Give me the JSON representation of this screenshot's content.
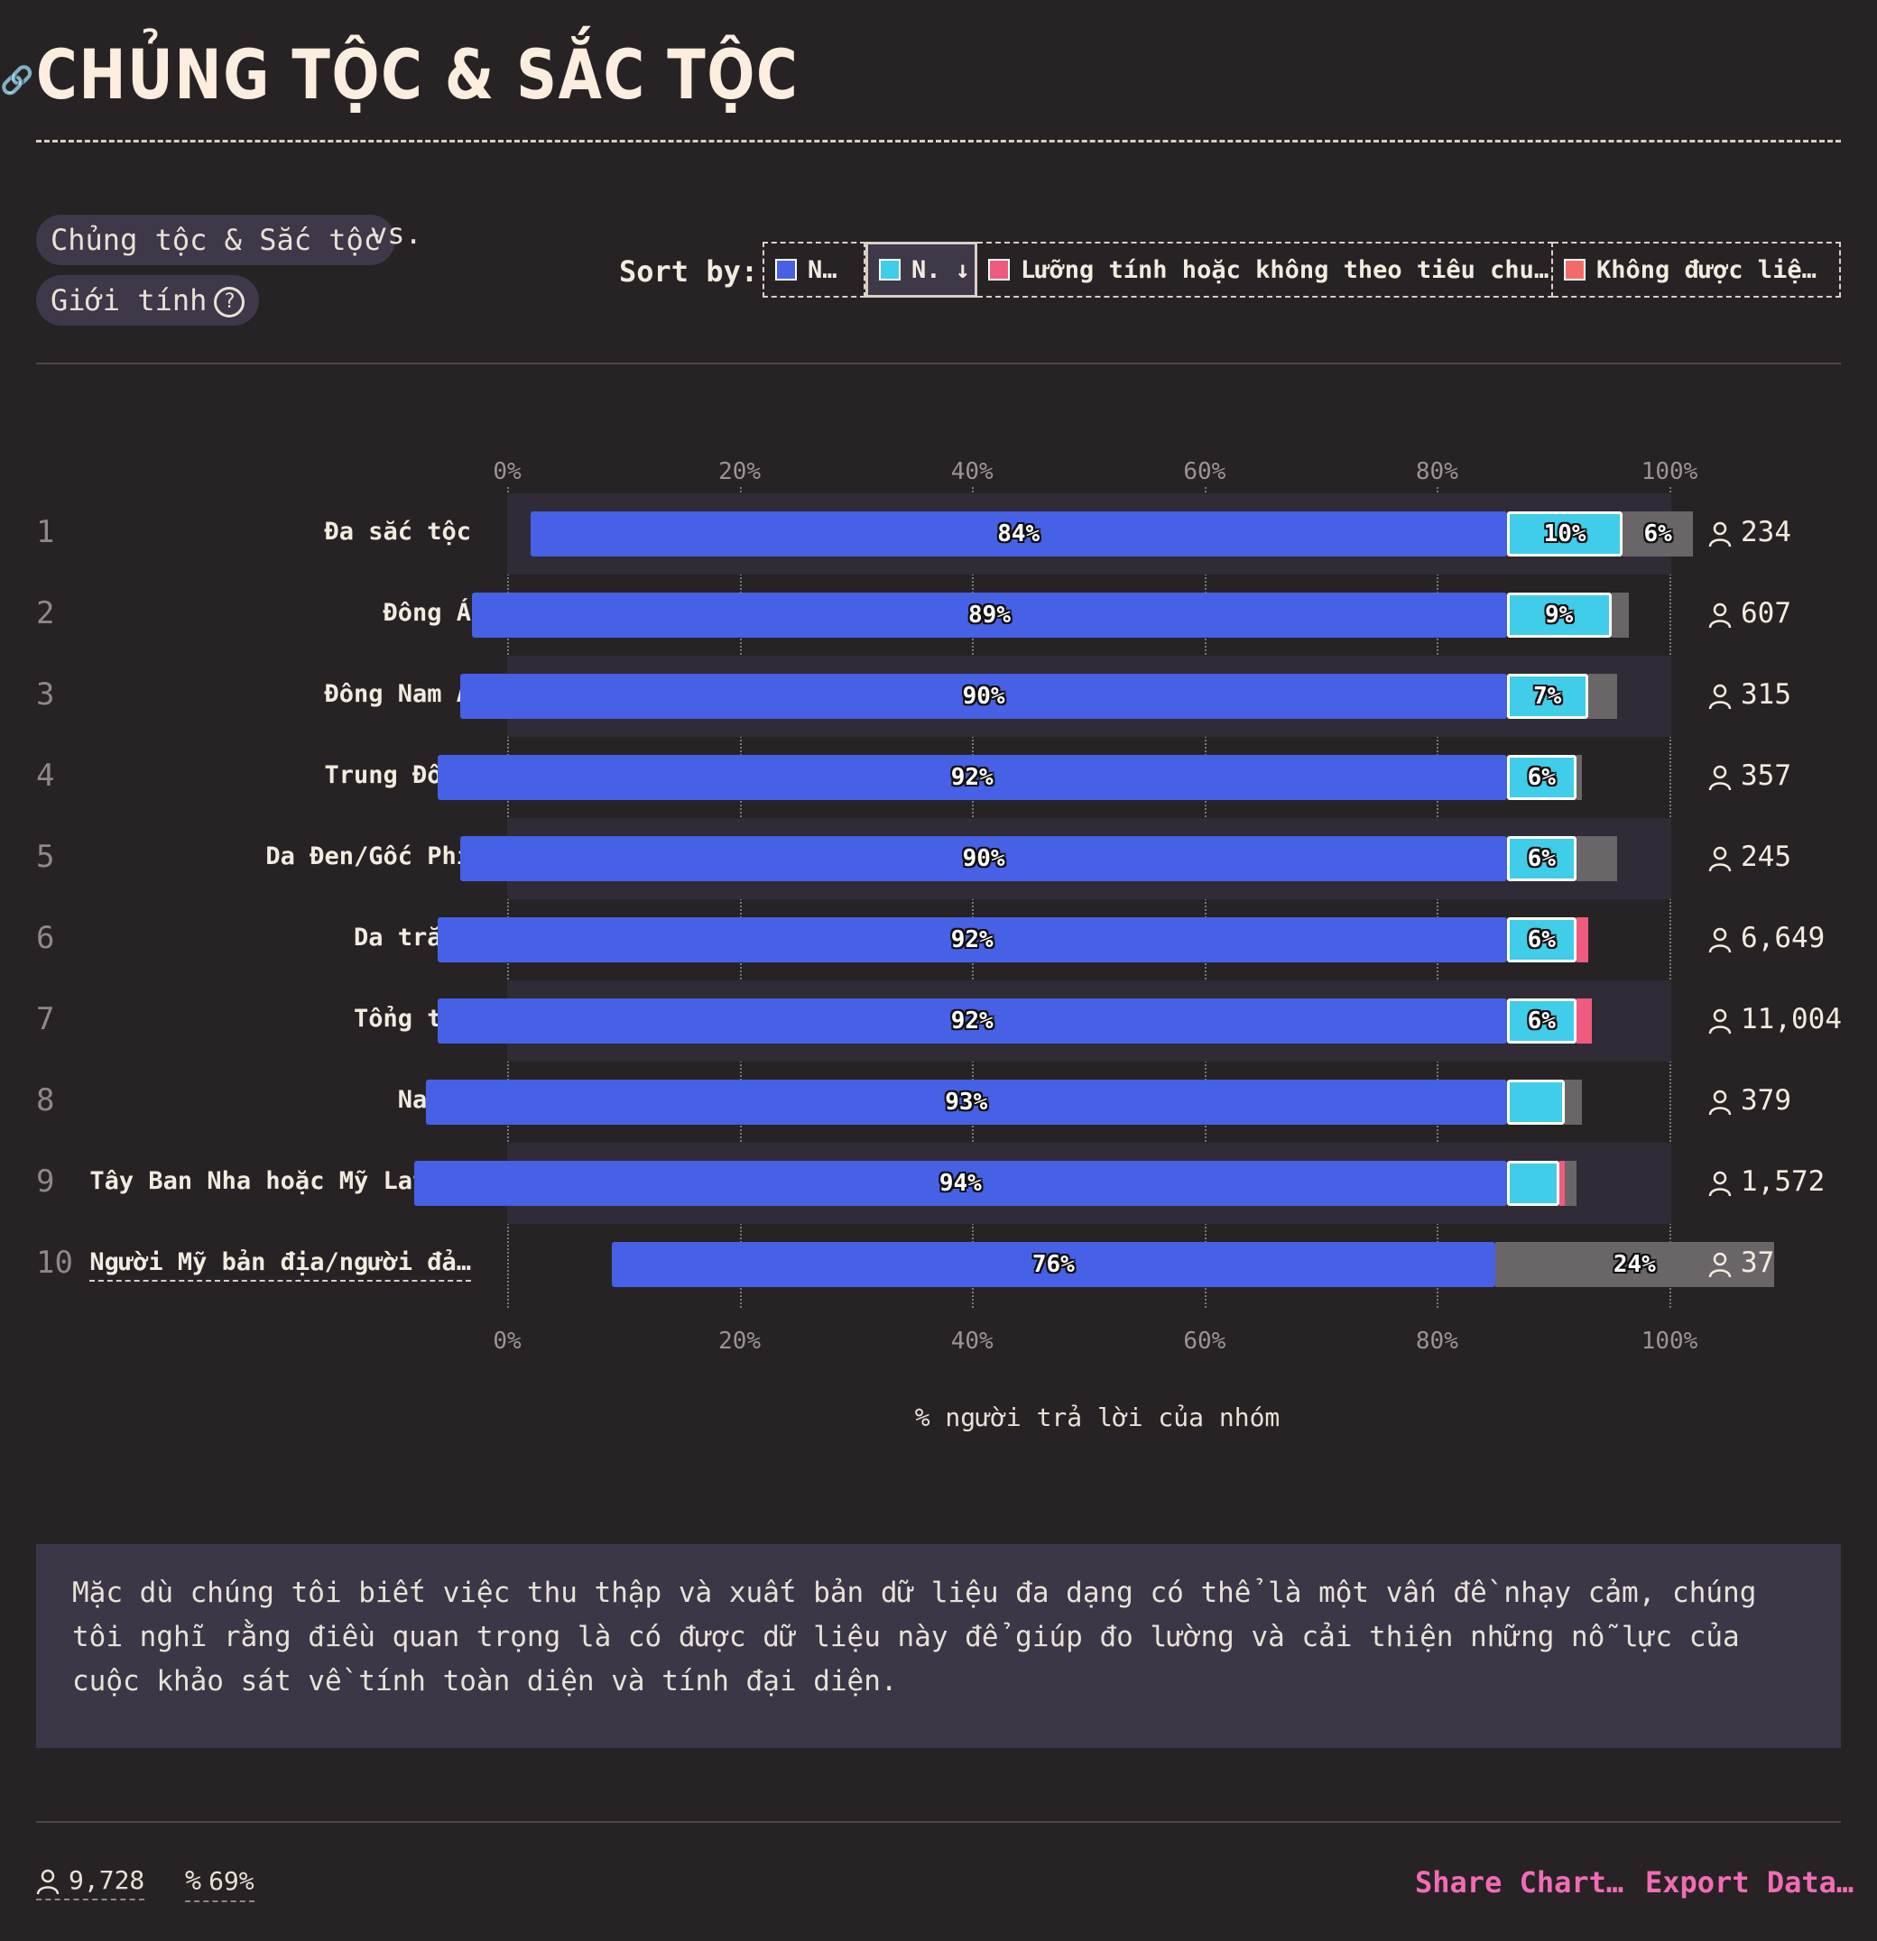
{
  "title": "CHỦNG TỘC & SẮC TỘC",
  "filters": {
    "primary": "Chủng tộc & Sắc tộc",
    "vs": "vs.",
    "secondary": "Giới tính"
  },
  "sort": {
    "label": "Sort by:",
    "options": [
      {
        "label": "N…",
        "color": "#4660e6"
      },
      {
        "label": "N. ↓",
        "color": "#3fcde9",
        "active": true
      },
      {
        "label": "Lưỡng tính hoặc không theo tiêu chu…",
        "color": "#f05a7e"
      },
      {
        "label": "Không được liệ…",
        "color": "#f46a6a"
      }
    ]
  },
  "chart_data": {
    "type": "bar",
    "orientation": "horizontal",
    "stacked": true,
    "xlabel": "% người trả lời của nhóm",
    "xlim": [
      0,
      100
    ],
    "ticks": [
      "0%",
      "20%",
      "40%",
      "60%",
      "80%",
      "100%"
    ],
    "grid": true,
    "rows": [
      {
        "rank": "1",
        "label": "Đa sắc tộc",
        "count": "234",
        "blue": 84,
        "cyan": 10,
        "pink": 0,
        "gray": 6,
        "blue_label": "84%",
        "cyan_label": "10%",
        "gray_label": "6%"
      },
      {
        "rank": "2",
        "label": "Đông Á",
        "count": "607",
        "blue": 89,
        "cyan": 9,
        "pink": 0,
        "gray": 1.5,
        "blue_label": "89%",
        "cyan_label": "9%",
        "gray_label": ""
      },
      {
        "rank": "3",
        "label": "Đông Nam Á",
        "count": "315",
        "blue": 90,
        "cyan": 7,
        "pink": 0,
        "gray": 2.5,
        "blue_label": "90%",
        "cyan_label": "7%",
        "gray_label": ""
      },
      {
        "rank": "4",
        "label": "Trung Đông",
        "count": "357",
        "blue": 92,
        "cyan": 6,
        "pink": 0,
        "gray": 0.5,
        "blue_label": "92%",
        "cyan_label": "6%",
        "gray_label": ""
      },
      {
        "rank": "5",
        "label": "Da Đen/Gốc Phi",
        "count": "245",
        "blue": 90,
        "cyan": 6,
        "pink": 0,
        "gray": 3.5,
        "blue_label": "90%",
        "cyan_label": "6%",
        "gray_label": ""
      },
      {
        "rank": "6",
        "label": "Da trắng",
        "count": "6,649",
        "blue": 92,
        "cyan": 6,
        "pink": 1,
        "gray": 0,
        "blue_label": "92%",
        "cyan_label": "6%",
        "gray_label": ""
      },
      {
        "rank": "7",
        "label": "Tổng thể",
        "count": "11,004",
        "blue": 92,
        "cyan": 6,
        "pink": 1.3,
        "gray": 0,
        "blue_label": "92%",
        "cyan_label": "6%",
        "gray_label": ""
      },
      {
        "rank": "8",
        "label": "Nam Á",
        "count": "379",
        "blue": 93,
        "cyan": 5,
        "pink": 0,
        "gray": 1.5,
        "blue_label": "93%",
        "cyan_label": "",
        "gray_label": ""
      },
      {
        "rank": "9",
        "label": "Tây Ban Nha hoặc Mỹ Latinh",
        "count": "1,572",
        "blue": 94,
        "cyan": 4.5,
        "pink": 0.5,
        "gray": 1,
        "blue_label": "94%",
        "cyan_label": "",
        "gray_label": ""
      },
      {
        "rank": "10",
        "label": "Người Mỹ bản địa/người đả…",
        "count": "37",
        "blue": 76,
        "cyan": 0,
        "pink": 0,
        "gray": 24,
        "blue_label": "76%",
        "cyan_label": "",
        "gray_label": "24%"
      }
    ]
  },
  "note": "Mặc dù chúng tôi biết việc thu thập và xuất bản dữ liệu đa dạng có thể là một vấn đề nhạy cảm, chúng tôi nghĩ rằng điều quan trọng là có được dữ liệu này để giúp đo lường và cải thiện những nỗ lực của cuộc khảo sát về tính toàn diện và tính đại diện.",
  "footer": {
    "respondents": "9,728",
    "percent": "69%",
    "share": "Share Chart…",
    "export": "Export Data…"
  }
}
